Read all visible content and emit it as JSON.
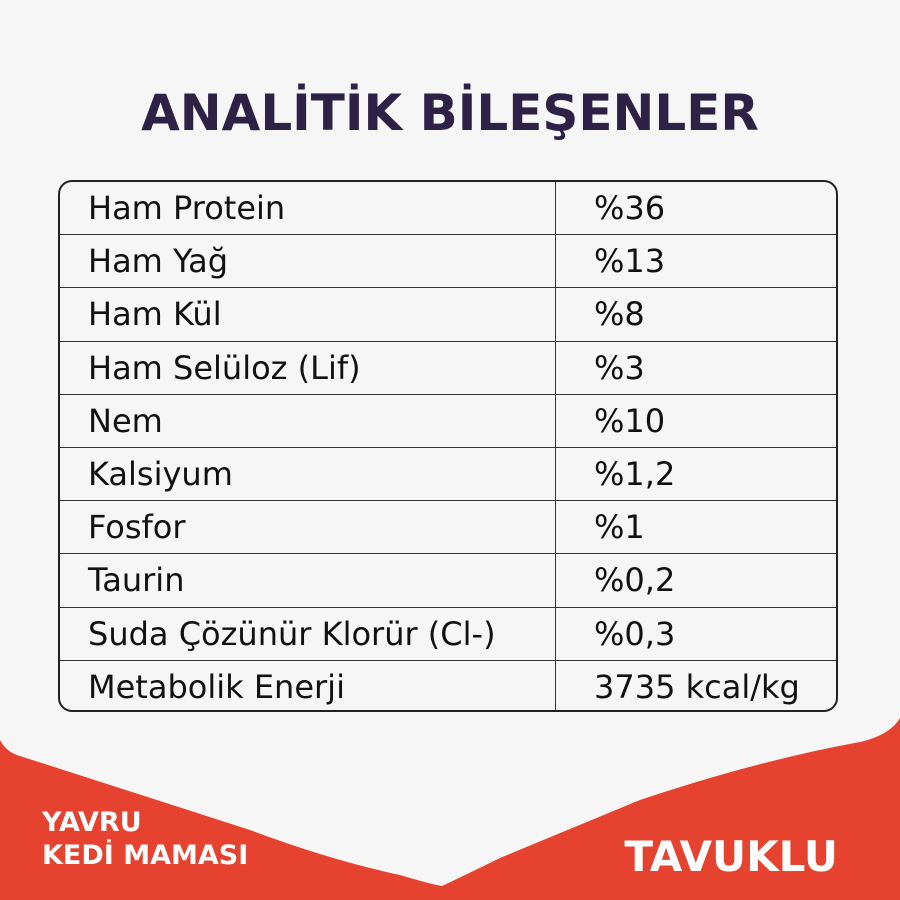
{
  "title": "ANALİTİK BİLEŞENLER",
  "rows": [
    {
      "name": "Ham Protein",
      "value": "%36"
    },
    {
      "name": "Ham Yağ",
      "value": "%13"
    },
    {
      "name": "Ham Kül",
      "value": "%8"
    },
    {
      "name": "Ham Selüloz (Lif)",
      "value": "%3"
    },
    {
      "name": "Nem",
      "value": "%10"
    },
    {
      "name": "Kalsiyum",
      "value": "%1,2"
    },
    {
      "name": "Fosfor",
      "value": "%1"
    },
    {
      "name": "Taurin",
      "value": "%0,2"
    },
    {
      "name": "Suda Çözünür Klorür (Cl-)",
      "value": "%0,3"
    },
    {
      "name": "Metabolik Enerji",
      "value": "3735 kcal/kg"
    }
  ],
  "footer": {
    "line1": "YAVRU",
    "line2": "KEDİ MAMASI",
    "flavor": "TAVUKLU"
  },
  "colors": {
    "title": "#2e2146",
    "banner": "#e5432f",
    "background": "#f7f6f6"
  }
}
